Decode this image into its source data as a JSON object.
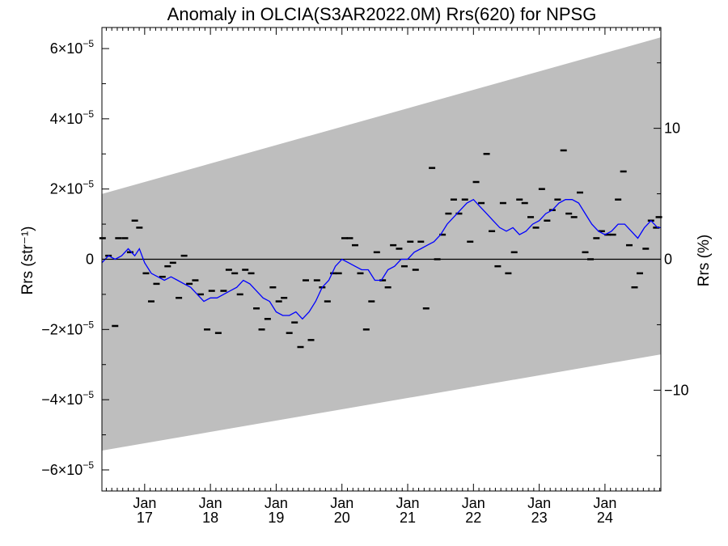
{
  "chart_data": {
    "type": "line",
    "title": "Anomaly in OLCIA(S3AR2022.0M) Rrs(620) for NPSG",
    "ylabel_left": "Rrs (str⁻¹)",
    "ylabel_right": "Rrs (%)",
    "xlim": [
      2016.35,
      2024.85
    ],
    "ylim": [
      -6.6e-05,
      6.6e-05
    ],
    "ylim_right": [
      -17.7,
      17.7
    ],
    "x_ticks": [
      {
        "value": 2017.0,
        "line1": "Jan",
        "line2": "17"
      },
      {
        "value": 2018.0,
        "line1": "Jan",
        "line2": "18"
      },
      {
        "value": 2019.0,
        "line1": "Jan",
        "line2": "19"
      },
      {
        "value": 2020.0,
        "line1": "Jan",
        "line2": "20"
      },
      {
        "value": 2021.0,
        "line1": "Jan",
        "line2": "21"
      },
      {
        "value": 2022.0,
        "line1": "Jan",
        "line2": "22"
      },
      {
        "value": 2023.0,
        "line1": "Jan",
        "line2": "23"
      },
      {
        "value": 2024.0,
        "line1": "Jan",
        "line2": "24"
      }
    ],
    "y_ticks_left": [
      {
        "value": 6e-05,
        "mantissa": "6×10",
        "exp": "−5"
      },
      {
        "value": 4e-05,
        "mantissa": "4×10",
        "exp": "−5"
      },
      {
        "value": 2e-05,
        "mantissa": "2×10",
        "exp": "−5"
      },
      {
        "value": 0,
        "mantissa": "0",
        "exp": ""
      },
      {
        "value": -2e-05,
        "mantissa": "−2×10",
        "exp": "−5"
      },
      {
        "value": -4e-05,
        "mantissa": "−4×10",
        "exp": "−5"
      },
      {
        "value": -6e-05,
        "mantissa": "−6×10",
        "exp": "−5"
      }
    ],
    "y_ticks_right": [
      {
        "value": 10,
        "label": "10"
      },
      {
        "value": 0,
        "label": "0"
      },
      {
        "value": -10,
        "label": "−10"
      }
    ],
    "band": {
      "x": [
        2016.35,
        2024.85
      ],
      "upper": [
        1.86e-05,
        6.32e-05
      ],
      "lower": [
        -5.45e-05,
        -2.71e-05
      ],
      "color": "#bebebe"
    },
    "zero_line": 0,
    "series": [
      {
        "kind": "points",
        "color": "#000000",
        "x": [
          2016.36,
          2016.45,
          2016.55,
          2016.6,
          2016.7,
          2016.78,
          2016.85,
          2016.92,
          2017.02,
          2017.1,
          2017.18,
          2017.27,
          2017.35,
          2017.43,
          2017.52,
          2017.6,
          2017.68,
          2017.77,
          2017.85,
          2017.95,
          2018.02,
          2018.12,
          2018.2,
          2018.28,
          2018.37,
          2018.45,
          2018.53,
          2018.62,
          2018.7,
          2018.78,
          2018.87,
          2018.95,
          2019.04,
          2019.12,
          2019.2,
          2019.28,
          2019.37,
          2019.45,
          2019.53,
          2019.62,
          2019.7,
          2019.78,
          2019.87,
          2019.95,
          2020.04,
          2020.12,
          2020.2,
          2020.28,
          2020.37,
          2020.45,
          2020.53,
          2020.62,
          2020.7,
          2020.78,
          2020.87,
          2020.95,
          2021.04,
          2021.12,
          2021.2,
          2021.28,
          2021.37,
          2021.45,
          2021.53,
          2021.62,
          2021.7,
          2021.78,
          2021.87,
          2021.95,
          2022.04,
          2022.12,
          2022.2,
          2022.28,
          2022.37,
          2022.45,
          2022.53,
          2022.62,
          2022.7,
          2022.78,
          2022.87,
          2022.95,
          2023.04,
          2023.12,
          2023.2,
          2023.28,
          2023.37,
          2023.45,
          2023.53,
          2023.62,
          2023.7,
          2023.78,
          2023.87,
          2023.95,
          2024.04,
          2024.12,
          2024.2,
          2024.28,
          2024.37,
          2024.45,
          2024.53,
          2024.62,
          2024.7,
          2024.78,
          2024.82
        ],
        "y": [
          6e-06,
          1e-06,
          -1.9e-05,
          6e-06,
          6e-06,
          2e-06,
          1.1e-05,
          9e-06,
          -4e-06,
          -1.2e-05,
          -7e-06,
          -5e-06,
          -2e-06,
          -1e-06,
          -1.1e-05,
          1e-06,
          -7e-06,
          -6e-06,
          -1e-05,
          -2e-05,
          -9e-06,
          -2.1e-05,
          -9e-06,
          -3e-06,
          -4e-06,
          -1e-05,
          -3e-06,
          -4e-06,
          -1.4e-05,
          -2e-05,
          -1.7e-05,
          -8e-06,
          -1.2e-05,
          -1.1e-05,
          -2.1e-05,
          -1.8e-05,
          -2.5e-05,
          -6e-06,
          -2.3e-05,
          -6e-06,
          -8e-06,
          -1.2e-05,
          -4e-06,
          -4e-06,
          6e-06,
          6e-06,
          4e-06,
          -4e-06,
          -2e-05,
          -1.2e-05,
          2e-06,
          -6e-06,
          -8e-06,
          4e-06,
          3e-06,
          -2e-06,
          5e-06,
          -3e-06,
          5e-06,
          -1.4e-05,
          2.6e-05,
          0.0,
          7e-06,
          1.3e-05,
          1.7e-05,
          1.3e-05,
          1.7e-05,
          5e-06,
          2.2e-05,
          1.6e-05,
          3e-05,
          8e-06,
          -2e-06,
          1.6e-05,
          -4e-06,
          2e-06,
          1.7e-05,
          1.6e-05,
          1.2e-05,
          9e-06,
          2e-05,
          1.1e-05,
          1.4e-05,
          1.7e-05,
          3.1e-05,
          1.3e-05,
          1.2e-05,
          1.9e-05,
          2e-06,
          0.0,
          6e-06,
          8e-06,
          7e-06,
          7e-06,
          1.7e-05,
          2.5e-05,
          4e-06,
          -8e-06,
          -4e-06,
          3e-06,
          1.1e-05,
          9e-06,
          1.2e-05
        ]
      },
      {
        "kind": "line",
        "color": "#0000ff",
        "x": [
          2016.35,
          2016.45,
          2016.55,
          2016.65,
          2016.75,
          2016.85,
          2016.92,
          2017.0,
          2017.1,
          2017.2,
          2017.3,
          2017.4,
          2017.5,
          2017.6,
          2017.7,
          2017.8,
          2017.9,
          2018.0,
          2018.1,
          2018.2,
          2018.3,
          2018.4,
          2018.5,
          2018.6,
          2018.7,
          2018.8,
          2018.9,
          2019.0,
          2019.1,
          2019.2,
          2019.3,
          2019.4,
          2019.5,
          2019.6,
          2019.7,
          2019.8,
          2019.9,
          2020.0,
          2020.1,
          2020.2,
          2020.3,
          2020.4,
          2020.5,
          2020.6,
          2020.7,
          2020.8,
          2020.9,
          2021.0,
          2021.1,
          2021.2,
          2021.3,
          2021.4,
          2021.5,
          2021.6,
          2021.7,
          2021.8,
          2021.9,
          2022.0,
          2022.1,
          2022.2,
          2022.3,
          2022.4,
          2022.5,
          2022.6,
          2022.7,
          2022.8,
          2022.9,
          2023.0,
          2023.1,
          2023.2,
          2023.3,
          2023.4,
          2023.5,
          2023.6,
          2023.7,
          2023.8,
          2023.9,
          2024.0,
          2024.1,
          2024.2,
          2024.3,
          2024.4,
          2024.5,
          2024.6,
          2024.7,
          2024.8,
          2024.85
        ],
        "y": [
          -1e-06,
          1e-06,
          0.0,
          1e-06,
          3e-06,
          1e-06,
          3e-06,
          -1e-06,
          -4e-06,
          -5e-06,
          -6e-06,
          -5e-06,
          -6e-06,
          -7e-06,
          -8e-06,
          -1e-05,
          -1.2e-05,
          -1.1e-05,
          -1.1e-05,
          -1e-05,
          -9e-06,
          -8e-06,
          -6e-06,
          -7e-06,
          -9e-06,
          -1.1e-05,
          -1.2e-05,
          -1.5e-05,
          -1.6e-05,
          -1.6e-05,
          -1.5e-05,
          -1.7e-05,
          -1.5e-05,
          -1.2e-05,
          -8e-06,
          -6e-06,
          -2e-06,
          0.0,
          -1e-06,
          -2e-06,
          -3e-06,
          -3e-06,
          -6e-06,
          -6e-06,
          -3e-06,
          -2e-06,
          0.0,
          0.0,
          2e-06,
          3e-06,
          4e-06,
          5e-06,
          7e-06,
          1e-05,
          1.2e-05,
          1.4e-05,
          1.6e-05,
          1.7e-05,
          1.5e-05,
          1.3e-05,
          1.1e-05,
          9e-06,
          8e-06,
          9e-06,
          7e-06,
          8e-06,
          1e-05,
          1.1e-05,
          1.3e-05,
          1.4e-05,
          1.6e-05,
          1.7e-05,
          1.7e-05,
          1.6e-05,
          1.3e-05,
          1e-05,
          8e-06,
          7e-06,
          8e-06,
          1e-05,
          1e-05,
          8e-06,
          6e-06,
          9e-06,
          1.1e-05,
          9e-06,
          9e-06
        ]
      }
    ],
    "grid": false,
    "legend": "none"
  }
}
